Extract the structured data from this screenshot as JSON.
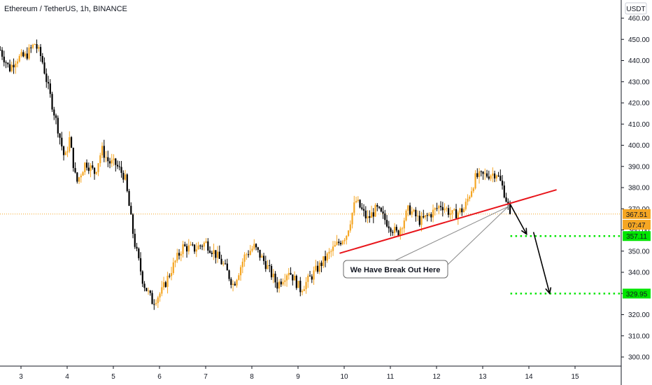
{
  "header": {
    "symbol_title": "Ethereum / TetherUS, 1h, BINANCE",
    "currency_label": "USDT"
  },
  "annotation": {
    "callout_text": "We Have Break Out Here"
  },
  "price_tags": {
    "last_price": "367.51",
    "countdown": "07:47",
    "target_1": "357.11",
    "target_2": "329.95"
  },
  "colors": {
    "up_candle": "#f5a623",
    "down_candle": "#000000",
    "trendline": "#e8151b",
    "target_line": "#00e600",
    "last_price_tag": "#f5a623",
    "target_tag": "#00e600",
    "axis_text": "#131722"
  },
  "chart_data": {
    "type": "candlestick",
    "title": "Ethereum / TetherUS, 1h, BINANCE",
    "currency": "USDT",
    "y_axis": {
      "ticks": [
        300,
        310,
        320,
        330,
        340,
        350,
        360,
        370,
        380,
        390,
        400,
        410,
        420,
        430,
        440,
        450,
        460
      ],
      "range": [
        294,
        463
      ]
    },
    "x_axis": {
      "tick_labels": [
        "3",
        "4",
        "5",
        "6",
        "7",
        "8",
        "9",
        "10",
        "11",
        "12",
        "13",
        "14",
        "15"
      ],
      "range": [
        2.55,
        15.9
      ]
    },
    "price_path": [
      [
        2.55,
        445
      ],
      [
        2.75,
        436
      ],
      [
        2.9,
        441
      ],
      [
        3.1,
        442
      ],
      [
        3.3,
        448
      ],
      [
        3.45,
        441
      ],
      [
        3.6,
        426
      ],
      [
        3.8,
        408
      ],
      [
        3.95,
        393
      ],
      [
        4.05,
        403
      ],
      [
        4.2,
        382
      ],
      [
        4.4,
        392
      ],
      [
        4.6,
        387
      ],
      [
        4.75,
        398
      ],
      [
        4.9,
        392
      ],
      [
        5.05,
        391
      ],
      [
        5.25,
        385
      ],
      [
        5.45,
        355
      ],
      [
        5.65,
        335
      ],
      [
        5.85,
        326
      ],
      [
        6.05,
        331
      ],
      [
        6.25,
        341
      ],
      [
        6.5,
        352
      ],
      [
        6.75,
        351
      ],
      [
        7.0,
        354
      ],
      [
        7.2,
        349
      ],
      [
        7.4,
        343
      ],
      [
        7.6,
        334
      ],
      [
        7.85,
        348
      ],
      [
        8.05,
        352
      ],
      [
        8.3,
        344
      ],
      [
        8.55,
        334
      ],
      [
        8.8,
        341
      ],
      [
        9.05,
        332
      ],
      [
        9.25,
        337
      ],
      [
        9.5,
        344
      ],
      [
        9.8,
        352
      ],
      [
        10.05,
        358
      ],
      [
        10.25,
        374
      ],
      [
        10.5,
        365
      ],
      [
        10.7,
        370
      ],
      [
        10.95,
        363
      ],
      [
        11.15,
        358
      ],
      [
        11.4,
        370
      ],
      [
        11.65,
        364
      ],
      [
        11.9,
        368
      ],
      [
        12.1,
        372
      ],
      [
        12.35,
        367
      ],
      [
        12.6,
        370
      ],
      [
        12.85,
        385
      ],
      [
        13.1,
        386
      ],
      [
        13.3,
        387
      ],
      [
        13.45,
        379
      ],
      [
        13.6,
        367.51
      ]
    ],
    "trendline": {
      "from": [
        9.9,
        349
      ],
      "to": [
        14.6,
        379
      ]
    },
    "breakout_point": [
      13.55,
      371
    ],
    "projection_arrows": [
      {
        "from": [
          13.6,
          372
        ],
        "to": [
          13.95,
          358
        ]
      },
      {
        "from": [
          14.1,
          359
        ],
        "to": [
          14.45,
          330
        ]
      }
    ],
    "target_levels": [
      {
        "value": 357.11,
        "from_x": 13.6
      },
      {
        "value": 329.95,
        "from_x": 13.6
      }
    ],
    "last_price": 367.51,
    "grid": false
  }
}
